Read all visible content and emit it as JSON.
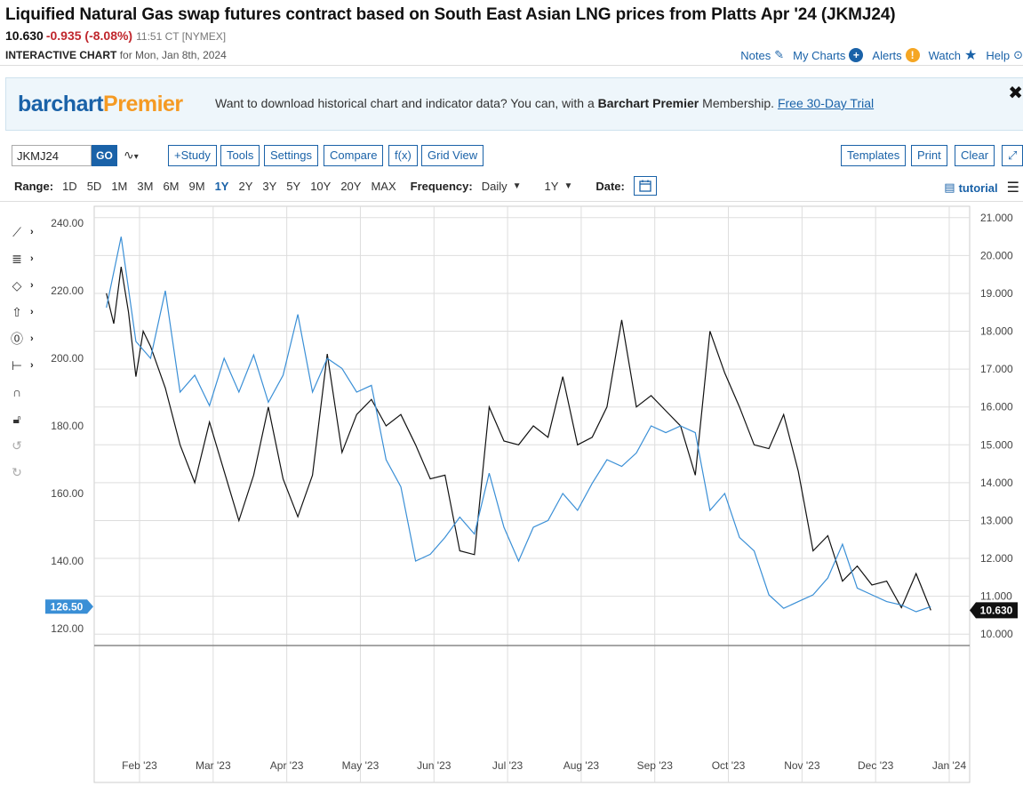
{
  "header": {
    "title": "Liquified Natural Gas swap futures contract based on South East Asian LNG prices from Platts Apr '24 (JKMJ24)",
    "last": "10.630",
    "change": "-0.935 (-8.08%)",
    "time": "11:51 CT [NYMEX]",
    "chart_label": "INTERACTIVE CHART",
    "chart_date": "for Mon, Jan 8th, 2024"
  },
  "toplinks": {
    "notes": "Notes",
    "my_charts": "My Charts",
    "alerts": "Alerts",
    "watch": "Watch",
    "help": "Help"
  },
  "promo": {
    "logo_a": "barchart",
    "logo_b": "Premier",
    "text1": "Want to download historical chart and indicator data? You can, with a ",
    "bold": "Barchart Premier",
    "text2": " Membership. ",
    "link": "Free 30-Day Trial",
    "close": "✖"
  },
  "toolbar": {
    "symbol": "JKMJ24",
    "go": "GO",
    "study": "+Study",
    "tools": "Tools",
    "settings": "Settings",
    "compare": "Compare",
    "fx": "f(x)",
    "grid": "Grid View",
    "templates": "Templates",
    "print": "Print",
    "clear": "Clear"
  },
  "range": {
    "label": "Range:",
    "options": [
      "1D",
      "5D",
      "1M",
      "3M",
      "6M",
      "9M",
      "1Y",
      "2Y",
      "3Y",
      "5Y",
      "10Y",
      "20Y",
      "MAX"
    ],
    "active": "1Y",
    "freq_label": "Frequency:",
    "freq_value": "Daily",
    "period_value": "1Y",
    "date_label": "Date:",
    "tutorial": "tutorial"
  },
  "colors": {
    "accent": "#1a62a8",
    "down": "#c0272d",
    "series_black": "#111111",
    "series_blue": "#3a8fd6"
  },
  "chart_data": {
    "type": "line",
    "x_ticks": [
      "Feb '23",
      "Mar '23",
      "Apr '23",
      "May '23",
      "Jun '23",
      "Jul '23",
      "Aug '23",
      "Sep '23",
      "Oct '23",
      "Nov '23",
      "Dec '23",
      "Jan '24"
    ],
    "left_axis": {
      "ticks": [
        "240.00",
        "220.00",
        "200.00",
        "180.00",
        "160.00",
        "140.00",
        "120.00"
      ],
      "ylim": [
        115,
        245
      ],
      "current": "126.50"
    },
    "right_axis": {
      "ticks": [
        "21.000",
        "20.000",
        "19.000",
        "18.000",
        "17.000",
        "16.000",
        "15.000",
        "14.000",
        "13.000",
        "12.000",
        "11.000",
        "10.000"
      ],
      "ylim": [
        9.7,
        21.3
      ],
      "current": "10.630"
    },
    "grid": true,
    "series": [
      {
        "axis": "right",
        "color": "#111111",
        "x": [
          0,
          0.1,
          0.2,
          0.3,
          0.4,
          0.5,
          0.6,
          0.8,
          1,
          1.2,
          1.4,
          1.6,
          1.8,
          2,
          2.2,
          2.4,
          2.6,
          2.8,
          3,
          3.2,
          3.4,
          3.6,
          3.8,
          4,
          4.2,
          4.4,
          4.6,
          4.8,
          5,
          5.2,
          5.4,
          5.6,
          5.8,
          6,
          6.2,
          6.4,
          6.6,
          6.8,
          7,
          7.2,
          7.4,
          7.6,
          7.8,
          8,
          8.2,
          8.4,
          8.6,
          8.8,
          9,
          9.2,
          9.4,
          9.6,
          9.8,
          10,
          10.2,
          10.4,
          10.6,
          10.8,
          11,
          11.2
        ],
        "values": [
          19.0,
          18.2,
          19.7,
          18.5,
          16.8,
          18.0,
          17.6,
          16.5,
          15.0,
          14.0,
          15.6,
          14.3,
          13.0,
          14.2,
          16.0,
          14.1,
          13.1,
          14.2,
          17.4,
          14.8,
          15.8,
          16.2,
          15.5,
          15.8,
          15.0,
          14.1,
          14.2,
          12.2,
          12.1,
          16.0,
          15.1,
          15.0,
          15.5,
          15.2,
          16.8,
          15.0,
          15.2,
          16.0,
          18.3,
          16.0,
          16.3,
          15.9,
          15.5,
          14.2,
          18.0,
          16.9,
          16.0,
          15.0,
          14.9,
          15.8,
          14.3,
          12.2,
          12.6,
          11.4,
          11.8,
          11.3,
          11.4,
          10.7,
          11.6,
          10.63
        ]
      },
      {
        "axis": "left",
        "color": "#3a8fd6",
        "x": [
          0,
          0.2,
          0.4,
          0.6,
          0.8,
          1,
          1.2,
          1.4,
          1.6,
          1.8,
          2,
          2.2,
          2.4,
          2.6,
          2.8,
          3,
          3.2,
          3.4,
          3.6,
          3.8,
          4,
          4.2,
          4.4,
          4.6,
          4.8,
          5,
          5.2,
          5.4,
          5.6,
          5.8,
          6,
          6.2,
          6.4,
          6.6,
          6.8,
          7,
          7.2,
          7.4,
          7.6,
          7.8,
          8,
          8.2,
          8.4,
          8.6,
          8.8,
          9,
          9.2,
          9.4,
          9.6,
          9.8,
          10,
          10.2,
          10.4,
          10.6,
          10.8,
          11,
          11.2
        ],
        "values": [
          215,
          236,
          205,
          200,
          220,
          190,
          195,
          186,
          200,
          190,
          201,
          187,
          195,
          213,
          190,
          200,
          197,
          190,
          192,
          170,
          162,
          140,
          142,
          147,
          153,
          148,
          166,
          150,
          140,
          150,
          152,
          160,
          155,
          163,
          170,
          168,
          172,
          180,
          178,
          180,
          178,
          155,
          160,
          147,
          143,
          130,
          126,
          128,
          130,
          135,
          145,
          132,
          130,
          128,
          127,
          125,
          126.5
        ]
      }
    ]
  }
}
